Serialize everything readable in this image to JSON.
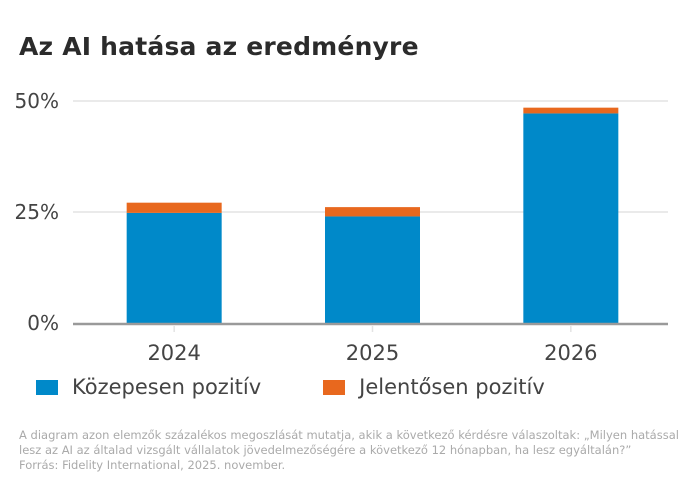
{
  "title": "Az AI hatása az eredményre",
  "colors": {
    "series1": "#0089c9",
    "series2": "#e8681e",
    "grid": "#e3e3e3",
    "axis": "#9a9a9a"
  },
  "chart_data": {
    "type": "bar",
    "stacked": true,
    "title": "Az AI hatása az eredményre",
    "categories": [
      "2024",
      "2025",
      "2026"
    ],
    "series": [
      {
        "name": "Közepesen pozitív",
        "values": [
          24.8,
          24.0,
          47.2
        ]
      },
      {
        "name": "Jelentősen pozitív",
        "values": [
          2.3,
          2.1,
          1.3
        ]
      }
    ],
    "ylim": [
      0,
      50
    ],
    "yticks": [
      0,
      25,
      50
    ],
    "ytick_labels": [
      "0%",
      "25%",
      "50%"
    ],
    "xlabel": "",
    "ylabel": "",
    "grid": true,
    "legend": "bottom-left"
  },
  "legend": [
    "Közepesen pozitív",
    "Jelentősen pozitív"
  ],
  "footnote": {
    "line1": "A diagram azon elemzők százalékos megoszlását mutatja, akik a következő kérdésre válaszoltak: „Milyen hatással",
    "line2": "lesz az AI az általad vizsgált vállalatok jövedelmezőségére a következő 12 hónapban, ha lesz egyáltalán?”",
    "line3": "Forrás: Fidelity International, 2025. november."
  }
}
